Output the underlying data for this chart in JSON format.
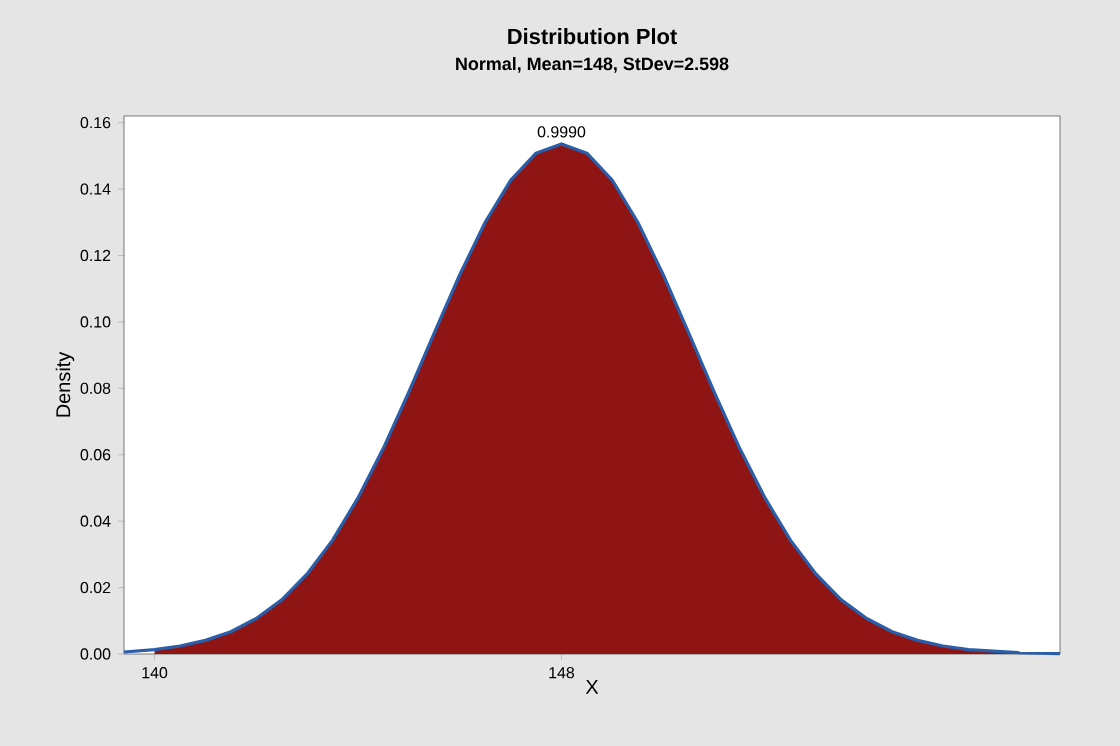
{
  "chart_data": {
    "type": "area",
    "title": "Distribution Plot",
    "subtitle": "Normal, Mean=148, StDev=2.598",
    "xlabel": "X",
    "ylabel": "Density",
    "xlim": [
      139.4,
      157.8
    ],
    "ylim": [
      0,
      0.162
    ],
    "xticks": [
      140,
      148
    ],
    "yticks": [
      {
        "value": 0,
        "label": "0.00"
      },
      {
        "value": 0.02,
        "label": "0.02"
      },
      {
        "value": 0.04,
        "label": "0.04"
      },
      {
        "value": 0.06,
        "label": "0.06"
      },
      {
        "value": 0.08,
        "label": "0.08"
      },
      {
        "value": 0.1,
        "label": "0.10"
      },
      {
        "value": 0.12,
        "label": "0.12"
      },
      {
        "value": 0.14,
        "label": "0.14"
      },
      {
        "value": 0.16,
        "label": "0.16"
      }
    ],
    "series": [
      {
        "color": "#8f1414",
        "x": [
          140,
          140.5,
          141,
          141.5,
          142,
          142.5,
          143,
          143.5,
          144,
          144.5,
          145,
          145.5,
          146,
          146.5,
          147,
          147.5,
          148,
          148.5,
          149,
          149.5,
          150,
          150.5,
          151,
          151.5,
          152,
          152.5,
          153,
          153.5,
          154,
          154.5,
          155,
          155.5,
          156,
          157,
          157.8
        ],
        "values": [
          0.0013,
          0.0024,
          0.0041,
          0.0067,
          0.0107,
          0.0163,
          0.0241,
          0.0343,
          0.047,
          0.062,
          0.0789,
          0.0967,
          0.1142,
          0.13,
          0.1426,
          0.1508,
          0.1536,
          0.1508,
          0.1426,
          0.13,
          0.1142,
          0.0967,
          0.0789,
          0.062,
          0.047,
          0.0343,
          0.0241,
          0.0163,
          0.0107,
          0.0067,
          0.0041,
          0.0024,
          0.0013,
          0.0004,
          0.0001
        ]
      },
      {
        "type": "line",
        "color": "#2b5ea8",
        "x": [
          139.4,
          140,
          140.5,
          141,
          141.5,
          142,
          142.5,
          143,
          143.5,
          144,
          144.5,
          145,
          145.5,
          146,
          146.5,
          147,
          147.5,
          148,
          148.5,
          149,
          149.5,
          150,
          150.5,
          151,
          151.5,
          152,
          152.5,
          153,
          153.5,
          154,
          154.5,
          155,
          155.5,
          156,
          157,
          157.8
        ],
        "values": [
          0.0006,
          0.0013,
          0.0024,
          0.0041,
          0.0067,
          0.0107,
          0.0163,
          0.0241,
          0.0343,
          0.047,
          0.062,
          0.0789,
          0.0967,
          0.1142,
          0.13,
          0.1426,
          0.1508,
          0.1536,
          0.1508,
          0.1426,
          0.13,
          0.1142,
          0.0967,
          0.0789,
          0.062,
          0.047,
          0.0343,
          0.0241,
          0.0163,
          0.0107,
          0.0067,
          0.0041,
          0.0024,
          0.0013,
          0.0004,
          0.0001
        ]
      }
    ],
    "annotations": [
      {
        "text": "0.9990",
        "x": 148,
        "y": 0.1536
      }
    ]
  }
}
